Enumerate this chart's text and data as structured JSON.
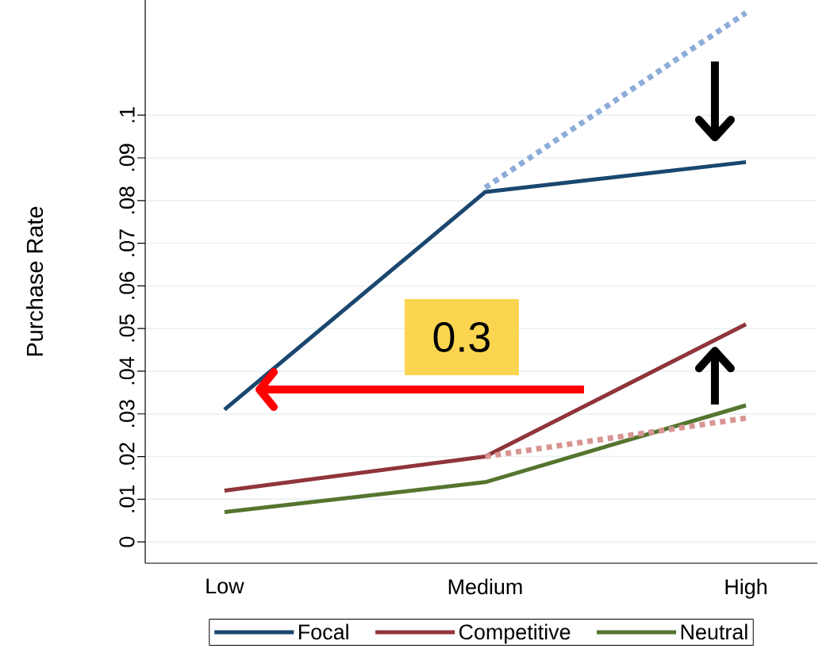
{
  "chart_data": {
    "type": "line",
    "ylabel": "Purchase Rate",
    "categories": [
      "Low",
      "Medium",
      "High"
    ],
    "series": [
      {
        "name": "Focal",
        "color": "#1a476f",
        "values": [
          0.031,
          0.082,
          0.089
        ]
      },
      {
        "name": "Competitive",
        "color": "#90353b",
        "values": [
          0.012,
          0.02,
          0.051
        ]
      },
      {
        "name": "Neutral",
        "color": "#55752f",
        "values": [
          0.007,
          0.014,
          0.032
        ]
      },
      {
        "color": "#8eadd8",
        "values": [
          null,
          0.083,
          0.124
        ],
        "line_style": "dotted"
      },
      {
        "color": "#d89593",
        "values": [
          null,
          0.02,
          0.029
        ],
        "line_style": "dotted"
      }
    ],
    "ylim": [
      -0.005,
      0.127
    ],
    "yticks": [
      0,
      {
        "value": 0.01,
        "label": ".01"
      },
      {
        "value": 0.02,
        "label": ".02"
      },
      {
        "value": 0.03,
        "label": ".03"
      },
      {
        "value": 0.04,
        "label": ".04"
      },
      {
        "value": 0.05,
        "label": ".05"
      },
      {
        "value": 0.06,
        "label": ".06"
      },
      {
        "value": 0.07,
        "label": ".07"
      },
      {
        "value": 0.08,
        "label": ".08"
      },
      {
        "value": 0.09,
        "label": ".09"
      },
      {
        "value": 0.1,
        "label": ".1"
      }
    ],
    "grid": "y",
    "legend": "bottom",
    "marker": "none",
    "line_style": "solid",
    "annotations": [
      "0.3"
    ]
  }
}
